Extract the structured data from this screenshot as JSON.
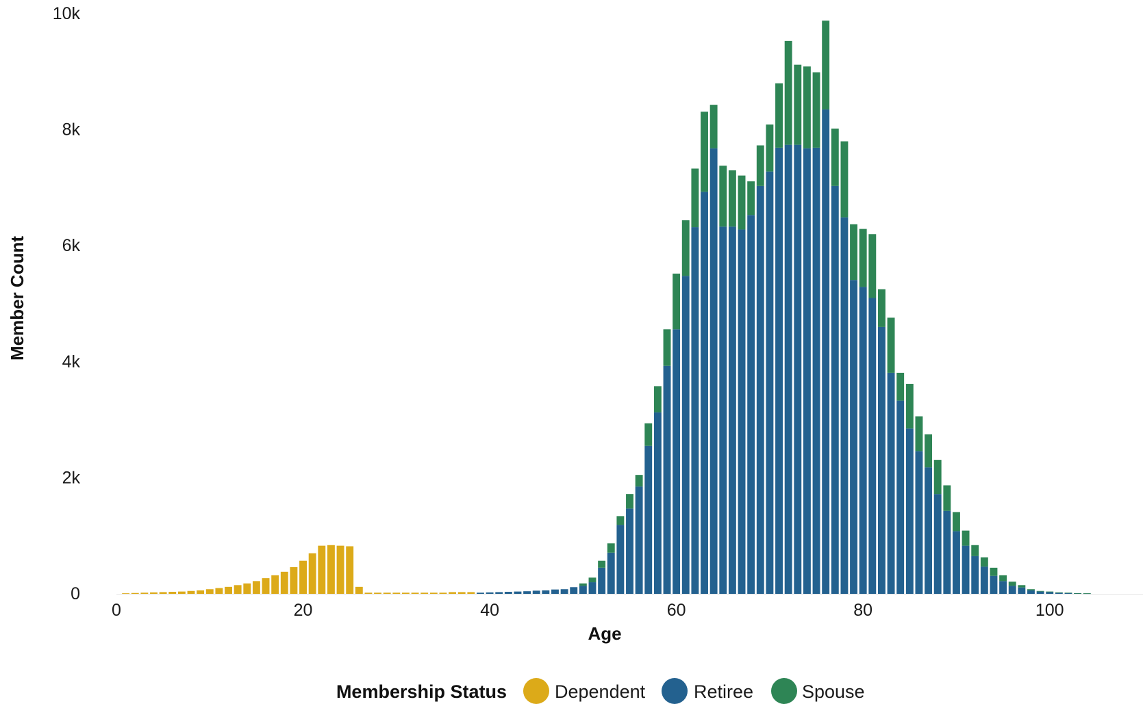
{
  "chart_data": {
    "type": "bar",
    "stacked": true,
    "xlabel": "Age",
    "ylabel": "Member Count",
    "xlim": [
      0,
      110
    ],
    "ylim": [
      0,
      10000
    ],
    "x_ticks": [
      0,
      20,
      40,
      60,
      80,
      100
    ],
    "x_tick_labels": [
      "0",
      "20",
      "40",
      "60",
      "80",
      "100"
    ],
    "y_ticks": [
      0,
      2000,
      4000,
      6000,
      8000,
      10000
    ],
    "y_tick_labels": [
      "0",
      "2k",
      "4k",
      "6k",
      "8k",
      "10k"
    ],
    "grid": false,
    "legend": {
      "title": "Membership Status",
      "placement": "bottom"
    },
    "series": [
      {
        "name": "Dependent",
        "color": "#dcaa19",
        "points": [
          [
            1,
            10
          ],
          [
            2,
            15
          ],
          [
            3,
            20
          ],
          [
            4,
            25
          ],
          [
            5,
            30
          ],
          [
            6,
            35
          ],
          [
            7,
            40
          ],
          [
            8,
            50
          ],
          [
            9,
            60
          ],
          [
            10,
            80
          ],
          [
            11,
            100
          ],
          [
            12,
            120
          ],
          [
            13,
            150
          ],
          [
            14,
            180
          ],
          [
            15,
            220
          ],
          [
            16,
            270
          ],
          [
            17,
            320
          ],
          [
            18,
            380
          ],
          [
            19,
            460
          ],
          [
            20,
            570
          ],
          [
            21,
            700
          ],
          [
            22,
            830
          ],
          [
            23,
            840
          ],
          [
            24,
            830
          ],
          [
            25,
            820
          ],
          [
            26,
            120
          ],
          [
            27,
            20
          ],
          [
            28,
            20
          ],
          [
            29,
            20
          ],
          [
            30,
            20
          ],
          [
            31,
            20
          ],
          [
            32,
            20
          ],
          [
            33,
            20
          ],
          [
            34,
            20
          ],
          [
            35,
            20
          ],
          [
            36,
            30
          ],
          [
            37,
            30
          ],
          [
            38,
            30
          ]
        ]
      },
      {
        "name": "Retiree",
        "color": "#23618f",
        "points": [
          [
            39,
            20
          ],
          [
            40,
            25
          ],
          [
            41,
            30
          ],
          [
            42,
            35
          ],
          [
            43,
            40
          ],
          [
            44,
            45
          ],
          [
            45,
            55
          ],
          [
            46,
            60
          ],
          [
            47,
            75
          ],
          [
            48,
            80
          ],
          [
            49,
            115
          ],
          [
            50,
            140
          ],
          [
            51,
            200
          ],
          [
            52,
            450
          ],
          [
            53,
            710
          ],
          [
            54,
            1190
          ],
          [
            55,
            1470
          ],
          [
            56,
            1850
          ],
          [
            57,
            2550
          ],
          [
            58,
            3130
          ],
          [
            59,
            3930
          ],
          [
            60,
            4560
          ],
          [
            61,
            5480
          ],
          [
            62,
            6320
          ],
          [
            63,
            6930
          ],
          [
            64,
            7680
          ],
          [
            65,
            6330
          ],
          [
            66,
            6330
          ],
          [
            67,
            6280
          ],
          [
            68,
            6530
          ],
          [
            69,
            7030
          ],
          [
            70,
            7280
          ],
          [
            71,
            7690
          ],
          [
            72,
            7740
          ],
          [
            73,
            7740
          ],
          [
            74,
            7680
          ],
          [
            75,
            7690
          ],
          [
            76,
            8350
          ],
          [
            77,
            7030
          ],
          [
            78,
            6490
          ],
          [
            79,
            5410
          ],
          [
            80,
            5290
          ],
          [
            81,
            5100
          ],
          [
            82,
            4600
          ],
          [
            83,
            3810
          ],
          [
            84,
            3330
          ],
          [
            85,
            2850
          ],
          [
            86,
            2460
          ],
          [
            87,
            2180
          ],
          [
            88,
            1720
          ],
          [
            89,
            1430
          ],
          [
            90,
            1080
          ],
          [
            91,
            830
          ],
          [
            92,
            650
          ],
          [
            93,
            470
          ],
          [
            94,
            310
          ],
          [
            95,
            220
          ],
          [
            96,
            140
          ],
          [
            97,
            110
          ],
          [
            98,
            60
          ],
          [
            99,
            40
          ],
          [
            100,
            30
          ],
          [
            101,
            20
          ],
          [
            102,
            15
          ],
          [
            103,
            10
          ],
          [
            104,
            8
          ]
        ]
      },
      {
        "name": "Spouse",
        "color": "#2e8555",
        "points": [
          [
            39,
            0
          ],
          [
            40,
            0
          ],
          [
            41,
            0
          ],
          [
            42,
            0
          ],
          [
            43,
            0
          ],
          [
            44,
            0
          ],
          [
            45,
            0
          ],
          [
            46,
            0
          ],
          [
            47,
            0
          ],
          [
            48,
            0
          ],
          [
            49,
            0
          ],
          [
            50,
            40
          ],
          [
            51,
            80
          ],
          [
            52,
            120
          ],
          [
            53,
            160
          ],
          [
            54,
            150
          ],
          [
            55,
            250
          ],
          [
            56,
            200
          ],
          [
            57,
            390
          ],
          [
            58,
            450
          ],
          [
            59,
            630
          ],
          [
            60,
            960
          ],
          [
            61,
            960
          ],
          [
            62,
            1010
          ],
          [
            63,
            1380
          ],
          [
            64,
            750
          ],
          [
            65,
            1050
          ],
          [
            66,
            970
          ],
          [
            67,
            930
          ],
          [
            68,
            580
          ],
          [
            69,
            700
          ],
          [
            70,
            810
          ],
          [
            71,
            1110
          ],
          [
            72,
            1790
          ],
          [
            73,
            1380
          ],
          [
            74,
            1410
          ],
          [
            75,
            1300
          ],
          [
            76,
            1530
          ],
          [
            77,
            990
          ],
          [
            78,
            1310
          ],
          [
            79,
            960
          ],
          [
            80,
            1000
          ],
          [
            81,
            1100
          ],
          [
            82,
            650
          ],
          [
            83,
            950
          ],
          [
            84,
            480
          ],
          [
            85,
            770
          ],
          [
            86,
            600
          ],
          [
            87,
            570
          ],
          [
            88,
            590
          ],
          [
            89,
            440
          ],
          [
            90,
            330
          ],
          [
            91,
            260
          ],
          [
            92,
            190
          ],
          [
            93,
            160
          ],
          [
            94,
            140
          ],
          [
            95,
            100
          ],
          [
            96,
            70
          ],
          [
            97,
            40
          ],
          [
            98,
            20
          ],
          [
            99,
            10
          ],
          [
            100,
            10
          ],
          [
            101,
            5
          ],
          [
            102,
            5
          ],
          [
            103,
            2
          ],
          [
            104,
            2
          ]
        ]
      }
    ]
  }
}
